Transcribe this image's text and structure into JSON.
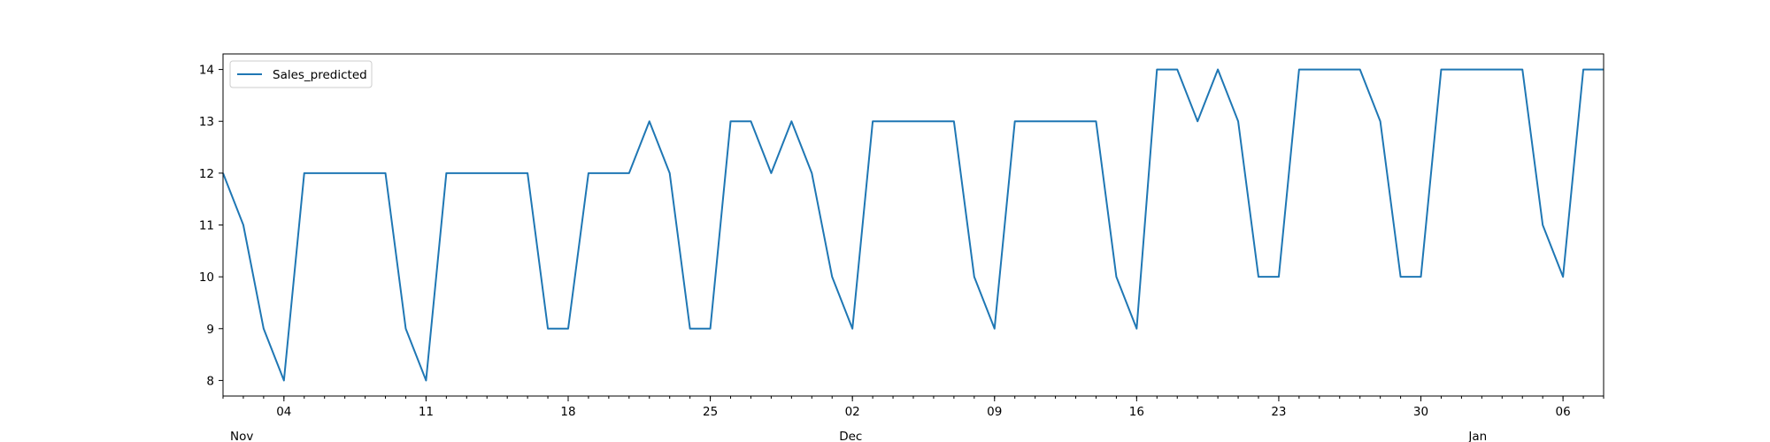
{
  "chart_data": {
    "type": "line",
    "title": "",
    "xlabel": "",
    "ylabel": "",
    "x_start": "2018-11-01",
    "x_end": "2019-01-08",
    "xlim": [
      "2018-11-01",
      "2019-01-08"
    ],
    "ylim": [
      7.7,
      14.3
    ],
    "y_ticks": [
      8,
      9,
      10,
      11,
      12,
      13,
      14
    ],
    "x_ticks_major": [
      {
        "date": "2018-11-04",
        "label": "04"
      },
      {
        "date": "2018-11-11",
        "label": "11"
      },
      {
        "date": "2018-11-18",
        "label": "18"
      },
      {
        "date": "2018-11-25",
        "label": "25"
      },
      {
        "date": "2018-12-02",
        "label": "02"
      },
      {
        "date": "2018-12-09",
        "label": "09"
      },
      {
        "date": "2018-12-16",
        "label": "16"
      },
      {
        "date": "2018-12-23",
        "label": "23"
      },
      {
        "date": "2018-12-30",
        "label": "30"
      },
      {
        "date": "2019-01-06",
        "label": "06"
      }
    ],
    "x_ticks_month": [
      {
        "date": "2018-11-01",
        "label": "Nov"
      },
      {
        "date": "2018-12-01",
        "label": "Dec"
      },
      {
        "date": "2019-01-01",
        "label": "Jan"
      }
    ],
    "grid": false,
    "legend": {
      "position": "top-left",
      "entries": [
        "Sales_predicted"
      ]
    },
    "colors": {
      "Sales_predicted": "#1f77b4"
    },
    "series": [
      {
        "name": "Sales_predicted",
        "x": [
          "2018-11-01",
          "2018-11-02",
          "2018-11-03",
          "2018-11-04",
          "2018-11-05",
          "2018-11-06",
          "2018-11-07",
          "2018-11-08",
          "2018-11-09",
          "2018-11-10",
          "2018-11-11",
          "2018-11-12",
          "2018-11-13",
          "2018-11-14",
          "2018-11-15",
          "2018-11-16",
          "2018-11-17",
          "2018-11-18",
          "2018-11-19",
          "2018-11-20",
          "2018-11-21",
          "2018-11-22",
          "2018-11-23",
          "2018-11-24",
          "2018-11-25",
          "2018-11-26",
          "2018-11-27",
          "2018-11-28",
          "2018-11-29",
          "2018-11-30",
          "2018-12-01",
          "2018-12-02",
          "2018-12-03",
          "2018-12-04",
          "2018-12-05",
          "2018-12-06",
          "2018-12-07",
          "2018-12-08",
          "2018-12-09",
          "2018-12-10",
          "2018-12-11",
          "2018-12-12",
          "2018-12-13",
          "2018-12-14",
          "2018-12-15",
          "2018-12-16",
          "2018-12-17",
          "2018-12-18",
          "2018-12-19",
          "2018-12-20",
          "2018-12-21",
          "2018-12-22",
          "2018-12-23",
          "2018-12-24",
          "2018-12-25",
          "2018-12-26",
          "2018-12-27",
          "2018-12-28",
          "2018-12-29",
          "2018-12-30",
          "2018-12-31",
          "2019-01-01",
          "2019-01-02",
          "2019-01-03",
          "2019-01-04",
          "2019-01-05",
          "2019-01-06",
          "2019-01-07",
          "2019-01-08"
        ],
        "values": [
          12,
          11,
          9,
          8,
          12,
          12,
          12,
          12,
          12,
          9,
          8,
          12,
          12,
          12,
          12,
          12,
          9,
          9,
          12,
          12,
          12,
          13,
          12,
          9,
          9,
          13,
          13,
          12,
          13,
          12,
          10,
          9,
          13,
          13,
          13,
          13,
          13,
          10,
          9,
          13,
          13,
          13,
          13,
          13,
          10,
          9,
          14,
          14,
          13,
          14,
          13,
          10,
          10,
          14,
          14,
          14,
          14,
          13,
          10,
          10,
          14,
          14,
          14,
          14,
          14,
          11,
          10,
          14,
          14
        ]
      }
    ]
  }
}
